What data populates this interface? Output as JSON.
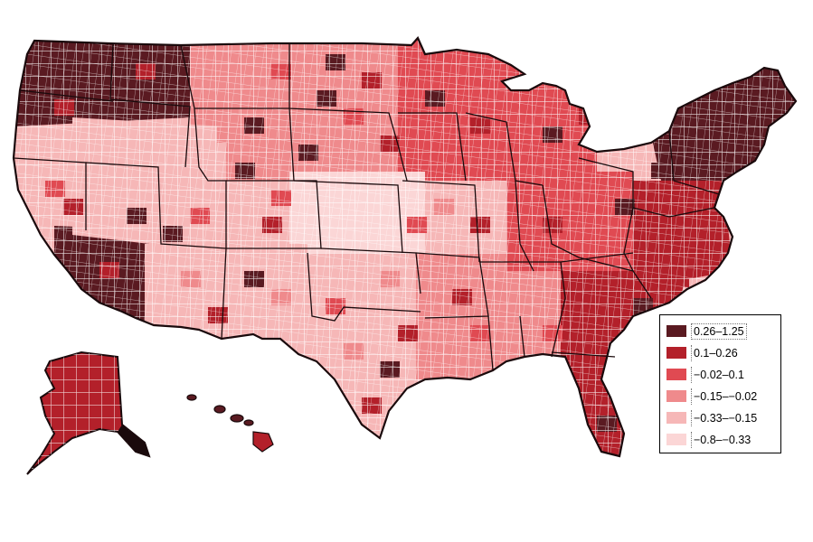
{
  "map": {
    "base_outline_color": "#1a0a0c",
    "county_border_color": "#ffffff"
  },
  "legend": {
    "items": [
      {
        "label": "0.26–1.25",
        "color": "#5a1a21"
      },
      {
        "label": "0.1–0.26",
        "color": "#b3202a"
      },
      {
        "label": "−0.02–0.1",
        "color": "#e04a52"
      },
      {
        "label": "−0.15–−0.02",
        "color": "#ef8a8c"
      },
      {
        "label": "−0.33–−0.15",
        "color": "#f6b7b7"
      },
      {
        "label": "−0.8–−0.33",
        "color": "#fbd6d6"
      }
    ]
  },
  "regions": [
    {
      "id": "pacific-nw",
      "class": 0
    },
    {
      "id": "california-south",
      "class": 0
    },
    {
      "id": "northeast",
      "class": 0
    },
    {
      "id": "mid-atlantic",
      "class": 1
    },
    {
      "id": "southeast-coast",
      "class": 1
    },
    {
      "id": "florida",
      "class": 1
    },
    {
      "id": "upper-midwest",
      "class": 2
    },
    {
      "id": "mountain-north",
      "class": 3
    },
    {
      "id": "great-basin",
      "class": 4
    },
    {
      "id": "great-plains",
      "class": 5
    },
    {
      "id": "texas",
      "class": 4
    },
    {
      "id": "south-central",
      "class": 3
    },
    {
      "id": "southwest",
      "class": 4
    },
    {
      "id": "appalachia",
      "class": 2
    }
  ]
}
